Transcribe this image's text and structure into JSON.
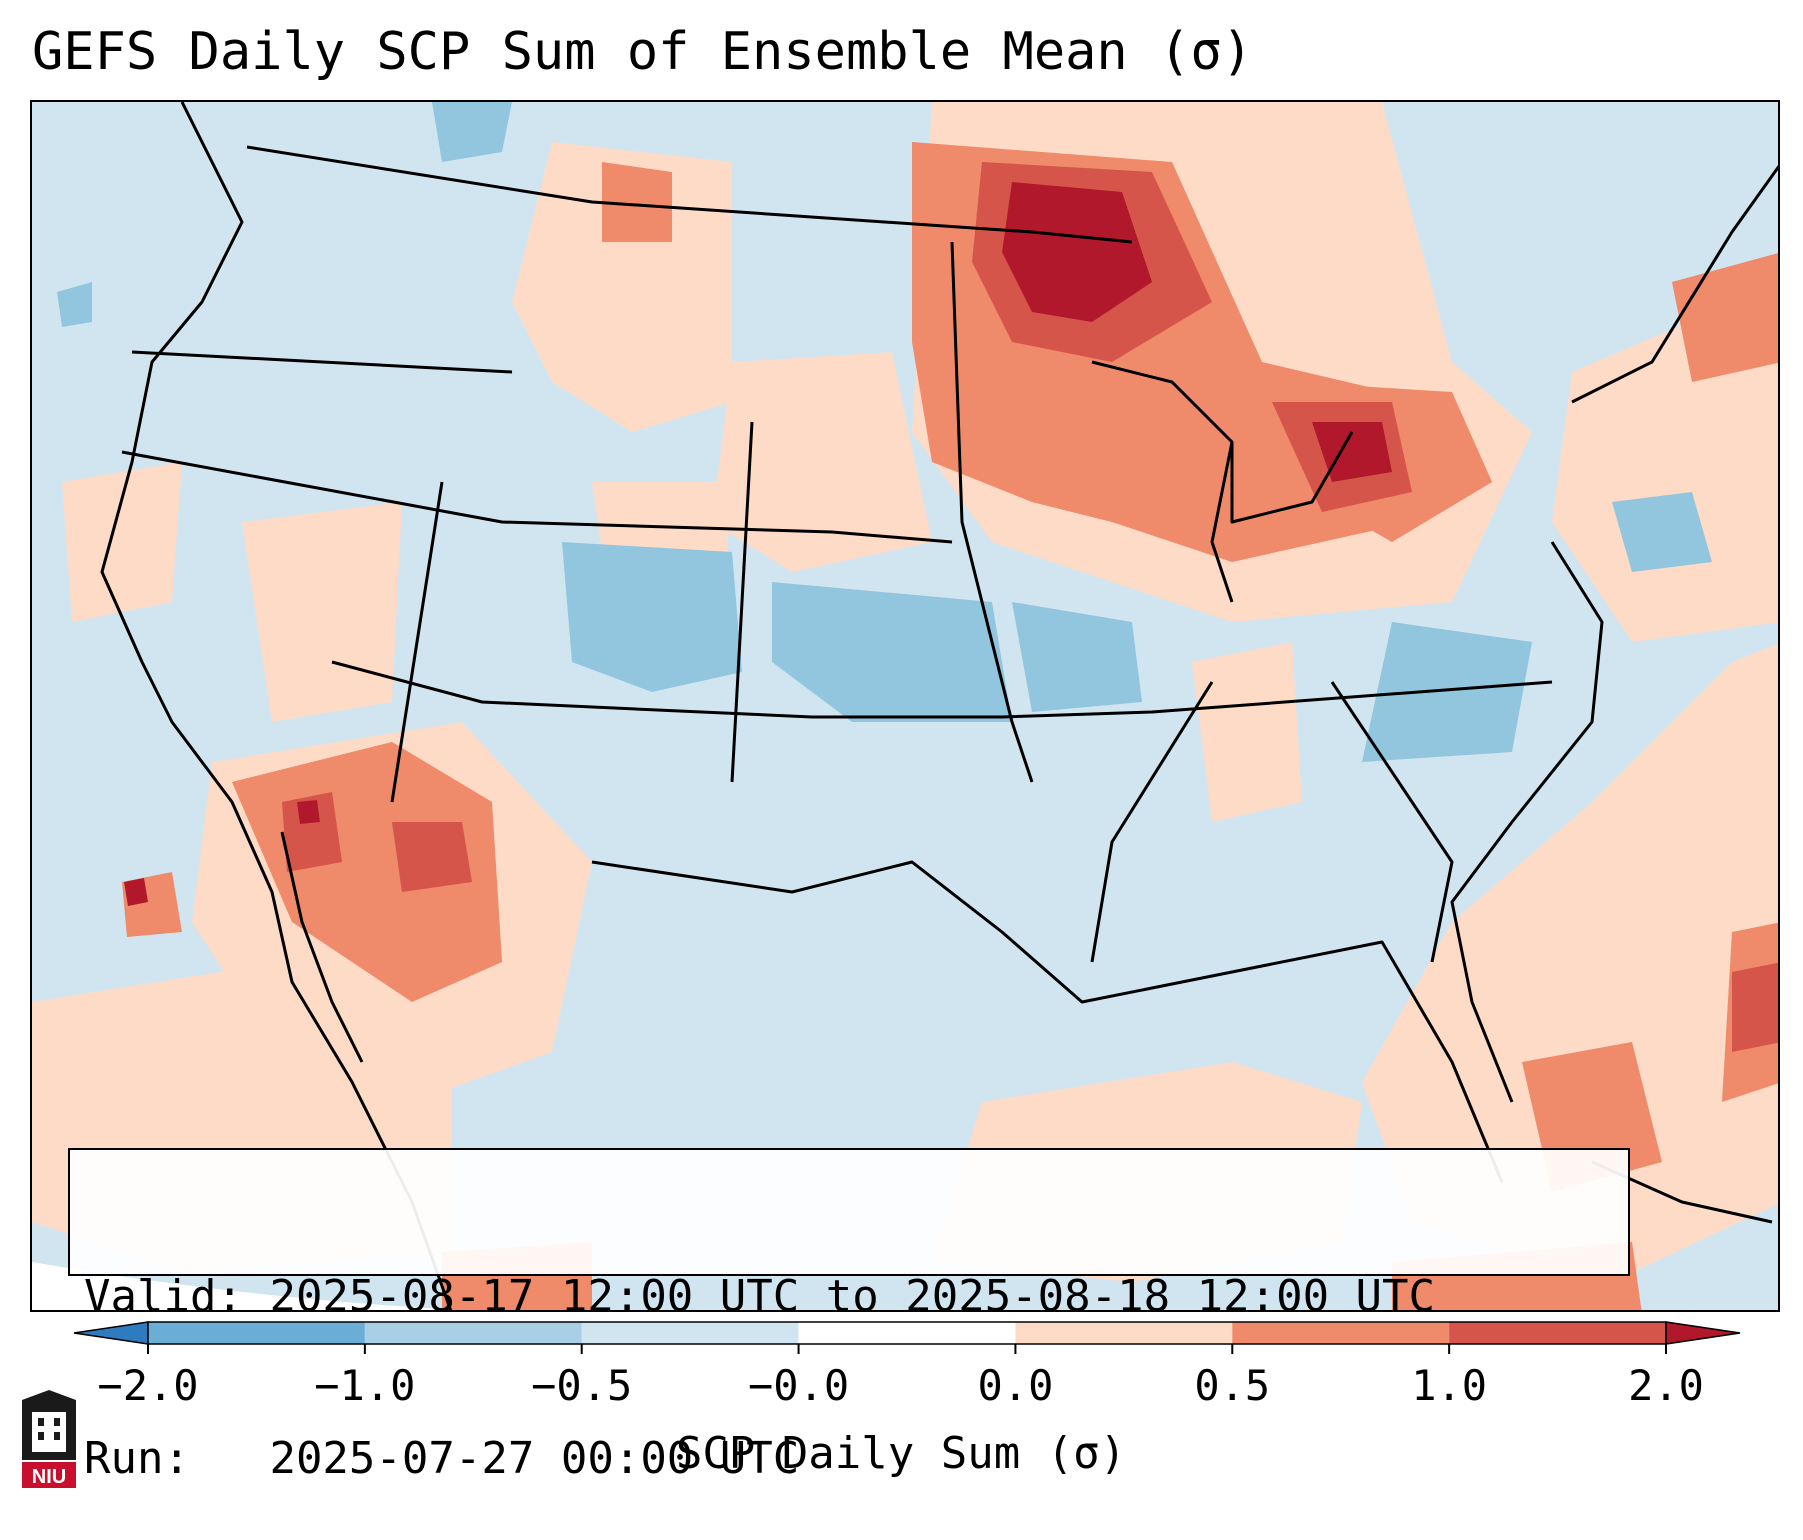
{
  "title": "GEFS Daily SCP Sum of Ensemble Mean (σ)",
  "info": {
    "valid_label": "Valid:",
    "valid_text": "2025-08-17 12:00 UTC to 2025-08-18 12:00 UTC",
    "run_label": "Run:",
    "run_text": "2025-07-27 00:00 UTC"
  },
  "colorbar": {
    "label": "SCP Daily Sum (σ)",
    "ticks": [
      "−2.0",
      "−1.0",
      "−0.5",
      "−0.0",
      "0.0",
      "0.5",
      "1.0",
      "2.0"
    ],
    "colors": [
      "#2e7bbf",
      "#6aaed6",
      "#a8cfe6",
      "#d1e5f0",
      "#ffffff",
      "#fddbc7",
      "#ef8a6a",
      "#d6554a",
      "#b2182b"
    ]
  },
  "logo": {
    "text": "NIU"
  }
}
